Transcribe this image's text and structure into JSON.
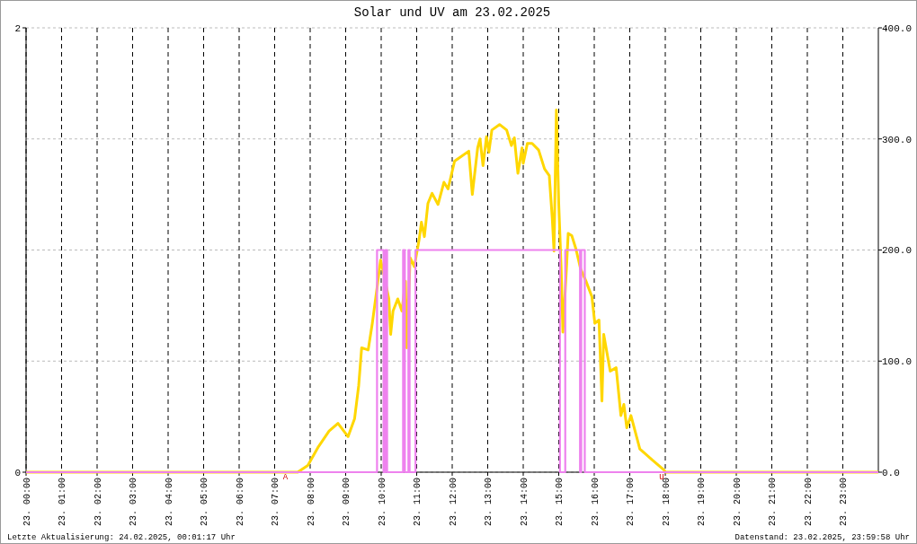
{
  "chart_data": {
    "type": "line",
    "title": "Solar und UV am 23.02.2025",
    "xlim": [
      "2025-02-23T00:00",
      "2025-02-24T00:00"
    ],
    "xticks": [
      {
        "value": "2025-02-23T00:00",
        "label": "23. 00:00"
      },
      {
        "value": "2025-02-23T01:00",
        "label": "23. 01:00"
      },
      {
        "value": "2025-02-23T02:00",
        "label": "23. 02:00"
      },
      {
        "value": "2025-02-23T03:00",
        "label": "23. 03:00"
      },
      {
        "value": "2025-02-23T04:00",
        "label": "23. 04:00"
      },
      {
        "value": "2025-02-23T05:00",
        "label": "23. 05:00"
      },
      {
        "value": "2025-02-23T06:00",
        "label": "23. 06:00"
      },
      {
        "value": "2025-02-23T07:00",
        "label": "23. 07:00"
      },
      {
        "value": "2025-02-23T08:00",
        "label": "23. 08:00"
      },
      {
        "value": "2025-02-23T09:00",
        "label": "23. 09:00"
      },
      {
        "value": "2025-02-23T10:00",
        "label": "23. 10:00"
      },
      {
        "value": "2025-02-23T11:00",
        "label": "23. 11:00"
      },
      {
        "value": "2025-02-23T12:00",
        "label": "23. 12:00"
      },
      {
        "value": "2025-02-23T13:00",
        "label": "23. 13:00"
      },
      {
        "value": "2025-02-23T14:00",
        "label": "23. 14:00"
      },
      {
        "value": "2025-02-23T15:00",
        "label": "23. 15:00"
      },
      {
        "value": "2025-02-23T16:00",
        "label": "23. 16:00"
      },
      {
        "value": "2025-02-23T17:00",
        "label": "23. 17:00"
      },
      {
        "value": "2025-02-23T18:00",
        "label": "23. 18:00"
      },
      {
        "value": "2025-02-23T19:00",
        "label": "23. 19:00"
      },
      {
        "value": "2025-02-23T20:00",
        "label": "23. 20:00"
      },
      {
        "value": "2025-02-23T21:00",
        "label": "23. 21:00"
      },
      {
        "value": "2025-02-23T22:00",
        "label": "23. 22:00"
      },
      {
        "value": "2025-02-23T23:00",
        "label": "23. 23:00"
      }
    ],
    "ylim": [
      0,
      2
    ],
    "yticks": [
      0,
      2
    ],
    "y2lim": [
      0,
      400
    ],
    "y2ticks": [
      {
        "value": 0,
        "label": "0.0"
      },
      {
        "value": 100,
        "label": "100.0"
      },
      {
        "value": 200,
        "label": "200.0"
      },
      {
        "value": 300,
        "label": "300.0"
      },
      {
        "value": 400,
        "label": "400.0"
      }
    ],
    "grid": true,
    "series": [
      {
        "color": "#ffd700",
        "axis": "y2",
        "x": [
          "2025-02-23T00:00",
          "2025-02-23T07:39",
          "2025-02-23T07:56",
          "2025-02-23T08:14",
          "2025-02-23T08:32",
          "2025-02-23T08:47",
          "2025-02-23T09:04",
          "2025-02-23T09:15",
          "2025-02-23T09:22",
          "2025-02-23T09:27",
          "2025-02-23T09:38",
          "2025-02-23T09:45",
          "2025-02-23T09:53",
          "2025-02-23T09:59",
          "2025-02-23T10:05",
          "2025-02-23T10:13",
          "2025-02-23T10:16",
          "2025-02-23T10:20",
          "2025-02-23T10:28",
          "2025-02-23T10:35",
          "2025-02-23T10:41",
          "2025-02-23T10:43",
          "2025-02-23T10:49",
          "2025-02-23T10:56",
          "2025-02-23T11:04",
          "2025-02-23T11:08",
          "2025-02-23T11:13",
          "2025-02-23T11:19",
          "2025-02-23T11:26",
          "2025-02-23T11:36",
          "2025-02-23T11:46",
          "2025-02-23T11:53",
          "2025-02-23T12:04",
          "2025-02-23T12:28",
          "2025-02-23T12:34",
          "2025-02-23T12:43",
          "2025-02-23T12:47",
          "2025-02-23T12:52",
          "2025-02-23T12:58",
          "2025-02-23T13:02",
          "2025-02-23T13:07",
          "2025-02-23T13:20",
          "2025-02-23T13:32",
          "2025-02-23T13:40",
          "2025-02-23T13:45",
          "2025-02-23T13:51",
          "2025-02-23T13:58",
          "2025-02-23T14:00",
          "2025-02-23T14:07",
          "2025-02-23T14:15",
          "2025-02-23T14:26",
          "2025-02-23T14:36",
          "2025-02-23T14:44",
          "2025-02-23T14:49",
          "2025-02-23T14:52",
          "2025-02-23T14:56",
          "2025-02-23T15:00",
          "2025-02-23T15:04",
          "2025-02-23T15:07",
          "2025-02-23T15:13",
          "2025-02-23T15:16",
          "2025-02-23T15:22",
          "2025-02-23T15:29",
          "2025-02-23T15:37",
          "2025-02-23T15:46",
          "2025-02-23T15:56",
          "2025-02-23T16:01",
          "2025-02-23T16:08",
          "2025-02-23T16:13",
          "2025-02-23T16:16",
          "2025-02-23T16:27",
          "2025-02-23T16:37",
          "2025-02-23T16:45",
          "2025-02-23T16:50",
          "2025-02-23T16:55",
          "2025-02-23T17:02",
          "2025-02-23T17:17",
          "2025-02-23T17:38",
          "2025-02-23T17:58",
          "2025-02-23T18:00",
          "2025-02-24T00:00"
        ],
        "values": [
          0,
          0,
          6,
          23,
          37,
          44,
          32,
          48,
          78,
          112,
          110,
          134,
          166,
          191,
          177,
          156,
          124,
          145,
          156,
          145,
          172,
          112,
          193,
          185,
          209,
          225,
          212,
          242,
          251,
          241,
          261,
          255,
          280,
          289,
          250,
          292,
          300,
          276,
          302,
          288,
          308,
          313,
          308,
          294,
          301,
          269,
          292,
          278,
          296,
          296,
          290,
          273,
          267,
          229,
          199,
          326,
          242,
          185,
          126,
          183,
          215,
          213,
          201,
          183,
          172,
          158,
          134,
          137,
          64,
          124,
          91,
          94,
          51,
          61,
          40,
          51,
          21,
          11,
          2,
          0,
          0
        ]
      },
      {
        "type": "step",
        "color": "#ee82ee",
        "x": [
          "2025-02-23T00:00",
          "2025-02-23T09:53",
          "2025-02-23T10:04",
          "2025-02-23T10:07",
          "2025-02-23T10:10",
          "2025-02-23T10:37",
          "2025-02-23T10:40",
          "2025-02-23T10:46",
          "2025-02-23T10:48",
          "2025-02-23T10:58",
          "2025-02-23T15:02",
          "2025-02-23T15:11",
          "2025-02-23T15:36",
          "2025-02-23T15:38",
          "2025-02-23T15:44",
          "2025-02-24T00:00"
        ],
        "values": [
          0,
          1,
          0,
          1,
          0,
          1,
          0,
          1,
          0,
          1,
          0,
          1,
          0,
          1,
          0,
          0
        ]
      }
    ],
    "annotations": [
      {
        "text": "A",
        "x": "2025-02-23T07:18",
        "y": 0
      },
      {
        "text": "U",
        "x": "2025-02-23T17:54",
        "y": 0
      },
      "Letzte Aktualisierung: 24.02.2025, 00:01:17 Uhr",
      "Datenstand: 23.02.2025, 23:59:58 Uhr"
    ]
  }
}
